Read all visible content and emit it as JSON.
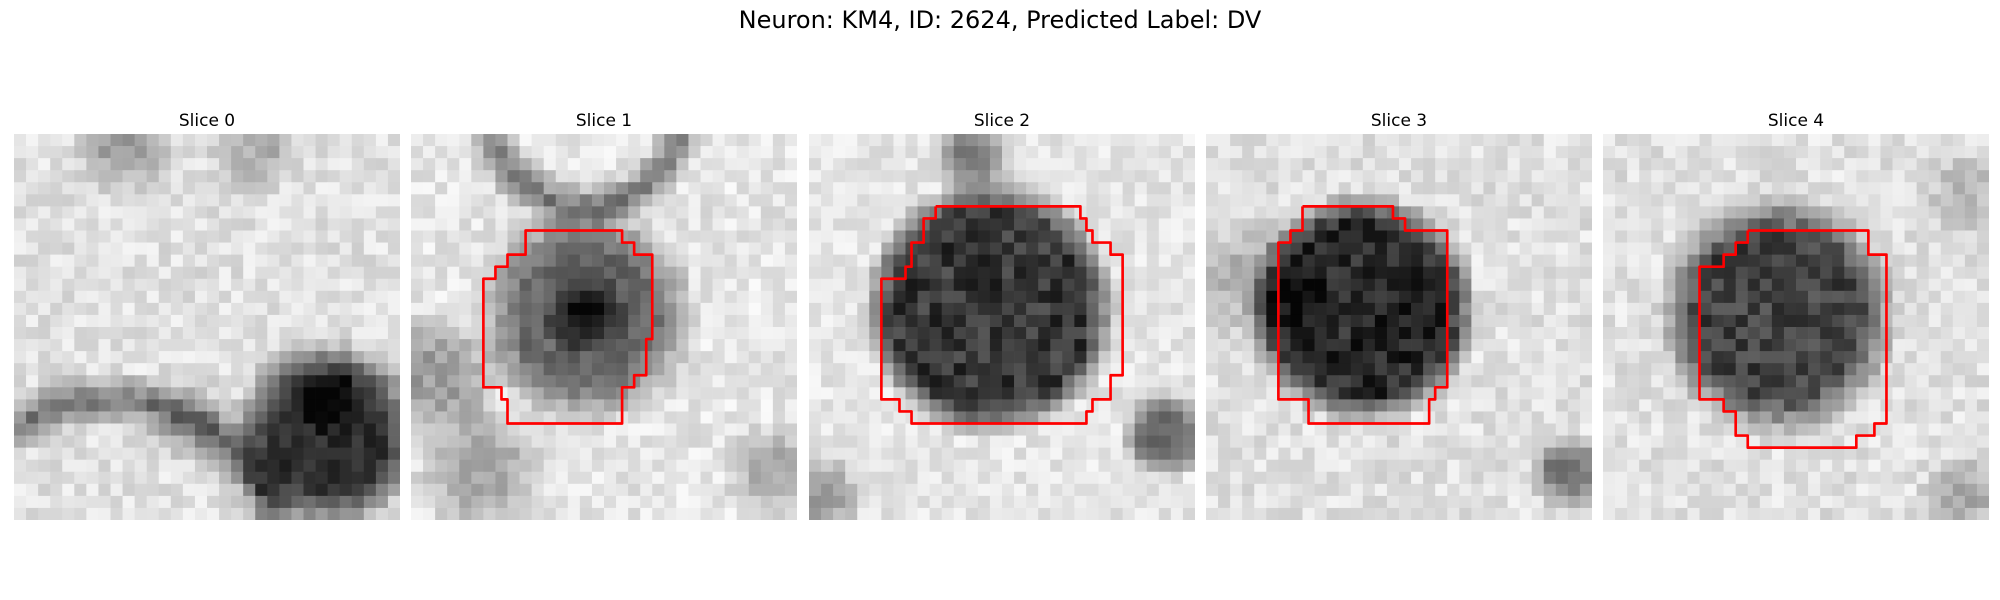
{
  "figure": {
    "title": "Neuron: KM4, ID: 2624, Predicted Label: DV"
  },
  "contour_color": "#ff0000",
  "colormap": "gray",
  "panels": [
    {
      "title": "Slice 0",
      "has_contour": false
    },
    {
      "title": "Slice 1",
      "has_contour": true
    },
    {
      "title": "Slice 2",
      "has_contour": true
    },
    {
      "title": "Slice 3",
      "has_contour": true
    },
    {
      "title": "Slice 4",
      "has_contour": true
    }
  ]
}
